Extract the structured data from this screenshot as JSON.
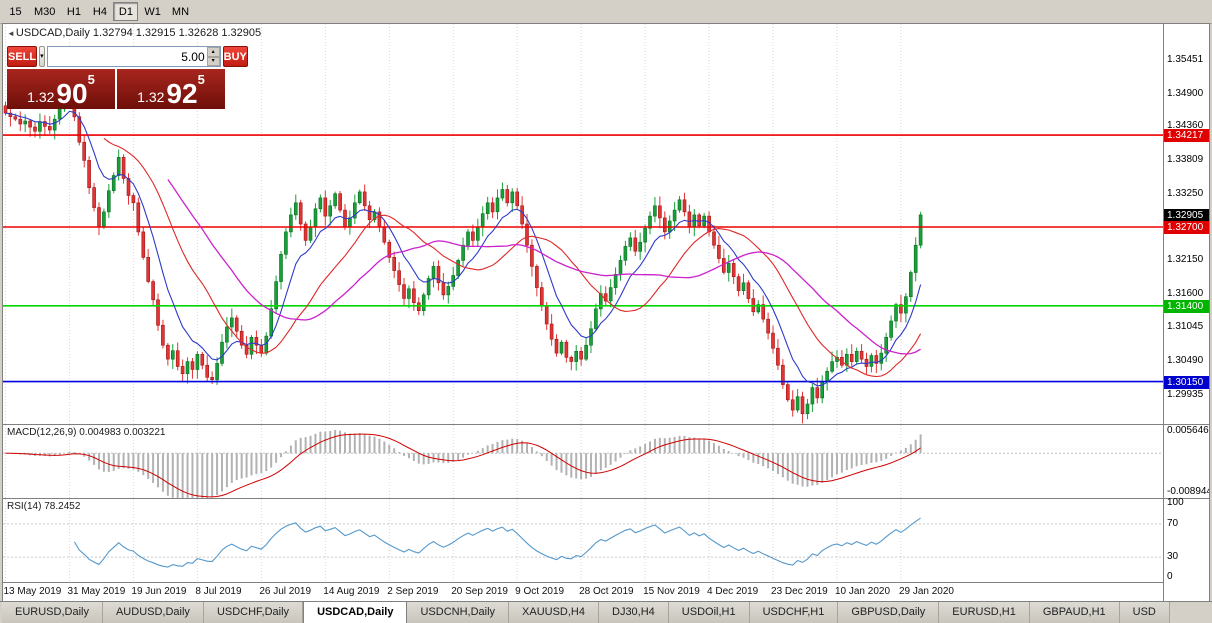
{
  "chart_title": "USDCAD,Daily 1.32794 1.32915 1.32628 1.32905",
  "periods": {
    "items": [
      "15",
      "M30",
      "H1",
      "H4",
      "D1",
      "W1",
      "MN"
    ],
    "active": "D1"
  },
  "one_click": {
    "sell_label": "SELL",
    "buy_label": "BUY",
    "volume": "5.00",
    "sell_price": {
      "prefix": "1.32",
      "big": "90",
      "sup": "5"
    },
    "buy_price": {
      "prefix": "1.32",
      "big": "92",
      "sup": "5"
    }
  },
  "panes": {
    "macd": {
      "label": "MACD(12,26,9)",
      "value1": "0.004983",
      "value2": "0.003221",
      "axis": [
        "0.005646",
        "-0.008944"
      ]
    },
    "rsi": {
      "label": "RSI(14)",
      "value": "78.2452",
      "axis": [
        100,
        70,
        30,
        0
      ]
    }
  },
  "price_axis": {
    "ticks": [
      1.35451,
      1.349,
      1.3436,
      1.33809,
      1.3325,
      1.3215,
      1.316,
      1.31045,
      1.3049,
      1.29935
    ],
    "line_labels": [
      {
        "value": "1.34217",
        "price": 1.34217,
        "color": "#e00000"
      },
      {
        "value": "1.32905",
        "price": 1.32905,
        "color": "#000000"
      },
      {
        "value": "1.32700",
        "price": 1.327,
        "color": "#e00000"
      },
      {
        "value": "1.31400",
        "price": 1.314,
        "color": "#00b400"
      },
      {
        "value": "1.30150",
        "price": 1.3015,
        "color": "#0000cc"
      }
    ]
  },
  "tabs": {
    "items": [
      "EURUSD,Daily",
      "AUDUSD,Daily",
      "USDCHF,Daily",
      "USDCAD,Daily",
      "USDCNH,Daily",
      "XAUUSD,H4",
      "DJ30,H4",
      "USDOil,H1",
      "USDCHF,H1",
      "GBPUSD,Daily",
      "EURUSD,H1",
      "GBPAUD,H1",
      "USD"
    ],
    "active": "USDCAD,Daily"
  },
  "chart_data": {
    "type": "candlestick",
    "symbol": "USDCAD",
    "timeframe": "Daily",
    "ohlc_display": {
      "open": 1.32794,
      "high": 1.32915,
      "low": 1.32628,
      "close": 1.32905
    },
    "current_price": 1.32905,
    "ylim": [
      1.2945,
      1.3605
    ],
    "bar_step": 4.92,
    "bars_per_label": 13,
    "wick_seed": 12,
    "x_labels": [
      "13 May 2019",
      "31 May 2019",
      "19 Jun 2019",
      "8 Jul 2019",
      "26 Jul 2019",
      "14 Aug 2019",
      "2 Sep 2019",
      "20 Sep 2019",
      "9 Oct 2019",
      "28 Oct 2019",
      "15 Nov 2019",
      "4 Dec 2019",
      "23 Dec 2019",
      "10 Jan 2020",
      "29 Jan 2020"
    ],
    "closes": [
      1.3458,
      1.3452,
      1.3448,
      1.344,
      1.3445,
      1.3435,
      1.3428,
      1.3444,
      1.3436,
      1.343,
      1.3448,
      1.3465,
      1.3478,
      1.3495,
      1.3452,
      1.341,
      1.338,
      1.3335,
      1.3302,
      1.327,
      1.3295,
      1.333,
      1.3355,
      1.3385,
      1.335,
      1.3322,
      1.331,
      1.3262,
      1.322,
      1.318,
      1.315,
      1.3108,
      1.3075,
      1.3052,
      1.3066,
      1.304,
      1.3028,
      1.3048,
      1.3035,
      1.306,
      1.3042,
      1.3022,
      1.3018,
      1.3045,
      1.308,
      1.3105,
      1.312,
      1.3098,
      1.3075,
      1.306,
      1.3088,
      1.3075,
      1.3062,
      1.309,
      1.3135,
      1.318,
      1.3225,
      1.3262,
      1.329,
      1.331,
      1.3275,
      1.3248,
      1.327,
      1.33,
      1.3318,
      1.3288,
      1.3305,
      1.3325,
      1.3298,
      1.327,
      1.3285,
      1.331,
      1.3328,
      1.3305,
      1.3282,
      1.3295,
      1.327,
      1.3245,
      1.322,
      1.3198,
      1.3175,
      1.3152,
      1.3168,
      1.3145,
      1.3132,
      1.3158,
      1.3185,
      1.3205,
      1.3178,
      1.3158,
      1.3172,
      1.319,
      1.3215,
      1.324,
      1.3262,
      1.3248,
      1.327,
      1.3292,
      1.331,
      1.3295,
      1.3318,
      1.3332,
      1.331,
      1.3328,
      1.3305,
      1.3275,
      1.324,
      1.3205,
      1.317,
      1.314,
      1.311,
      1.3085,
      1.3062,
      1.308,
      1.3055,
      1.3048,
      1.3065,
      1.3052,
      1.3075,
      1.3102,
      1.3135,
      1.316,
      1.3148,
      1.317,
      1.3192,
      1.3215,
      1.3238,
      1.3252,
      1.323,
      1.3245,
      1.3268,
      1.3288,
      1.3305,
      1.3285,
      1.3262,
      1.328,
      1.3298,
      1.3315,
      1.3295,
      1.327,
      1.329,
      1.3272,
      1.3288,
      1.3262,
      1.324,
      1.3218,
      1.3195,
      1.321,
      1.3188,
      1.3165,
      1.3178,
      1.3152,
      1.313,
      1.3142,
      1.3118,
      1.3095,
      1.307,
      1.3042,
      1.301,
      1.2985,
      1.2968,
      1.299,
      1.2962,
      1.2978,
      1.3005,
      1.2988,
      1.3015,
      1.3032,
      1.3048,
      1.3055,
      1.3042,
      1.306,
      1.3048,
      1.3065,
      1.3052,
      1.304,
      1.3058,
      1.3045,
      1.3062,
      1.3088,
      1.3115,
      1.3142,
      1.3128,
      1.3155,
      1.3195,
      1.324,
      1.329
    ],
    "hlines": [
      {
        "price": 1.34217,
        "color": "#ee0000"
      },
      {
        "price": 1.327,
        "color": "#ee0000"
      },
      {
        "price": 1.314,
        "color": "#00d800"
      },
      {
        "price": 1.3015,
        "color": "#0000e0"
      }
    ],
    "ma_periods": {
      "fast": 9,
      "mid": 21,
      "slow": 34
    },
    "ma_colors": {
      "fast": "#2e3bc8",
      "mid": "#e02828",
      "slow": "#cc22cc"
    },
    "colors": {
      "up": "#18a038",
      "up_border": "#0c6e24",
      "down": "#e23434",
      "down_border": "#9e1717"
    },
    "macd_range": [
      -0.008944,
      0.005646
    ],
    "rsi_levels": [
      70,
      30
    ],
    "rsi_color": "#5599cc",
    "indicators": {
      "macd": {
        "params": "12,26,9",
        "value": 0.004983,
        "signal": 0.003221
      },
      "rsi": {
        "params": "14",
        "value": 78.2452
      }
    }
  }
}
